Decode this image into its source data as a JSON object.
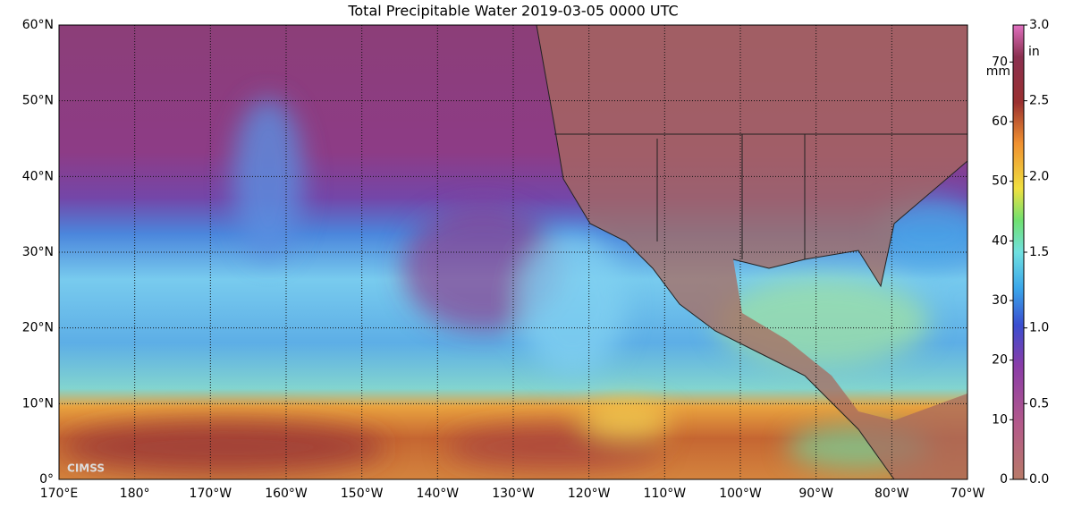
{
  "title": "Total Precipitable Water  2019-03-05 0000 UTC",
  "lat_labels": [
    "60°N",
    "50°N",
    "40°N",
    "30°N",
    "20°N",
    "10°N",
    "0°"
  ],
  "lon_labels": [
    "170°E",
    "180°",
    "170°W",
    "160°W",
    "150°W",
    "140°W",
    "130°W",
    "120°W",
    "110°W",
    "100°W",
    "90°W",
    "80°W",
    "70°W"
  ],
  "colorbar": {
    "mm_unit": "mm",
    "in_unit": "in",
    "mm_ticks": [
      0,
      10,
      20,
      30,
      40,
      50,
      60,
      70
    ],
    "in_ticks": [
      {
        "value": 0,
        "label": "0.0"
      },
      {
        "value": 0.5,
        "label": "0.5"
      },
      {
        "value": 1,
        "label": "1.0"
      },
      {
        "value": 1.5,
        "label": "1.5"
      },
      {
        "value": 2,
        "label": "2.0"
      },
      {
        "value": 2.5,
        "label": "2.5"
      },
      {
        "value": 3,
        "label": "3.0"
      }
    ]
  },
  "logo": "CIMSS"
}
